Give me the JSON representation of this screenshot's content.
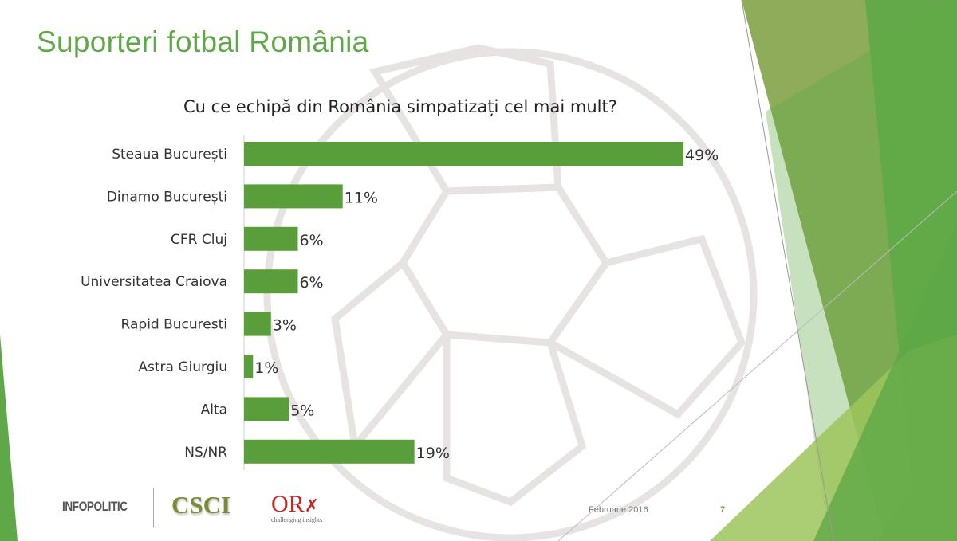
{
  "slide": {
    "title": "Suporteri fotbal România",
    "date": "Februarie 2016",
    "page_number": "7",
    "logos": {
      "infopolitic": "INFOPOLITIC",
      "csci": "CSCI",
      "orx": "OR",
      "orx_tagline": "challenging insights"
    },
    "accent_color": "#5fa847"
  },
  "chart_data": {
    "type": "bar",
    "orientation": "horizontal",
    "title": "Cu ce echipă din România simpatizați cel mai mult?",
    "categories": [
      "Steaua București",
      "Dinamo București",
      "CFR Cluj",
      "Universitatea Craiova",
      "Rapid Bucuresti",
      "Astra Giurgiu",
      "Alta",
      "NS/NR"
    ],
    "values": [
      49,
      11,
      6,
      6,
      3,
      1,
      5,
      19
    ],
    "data_labels": [
      "49%",
      "11%",
      "6%",
      "6%",
      "3%",
      "1%",
      "5%",
      "19%"
    ],
    "unit": "%",
    "bar_color": "#5a9e3c",
    "grid": false,
    "legend": "none"
  }
}
